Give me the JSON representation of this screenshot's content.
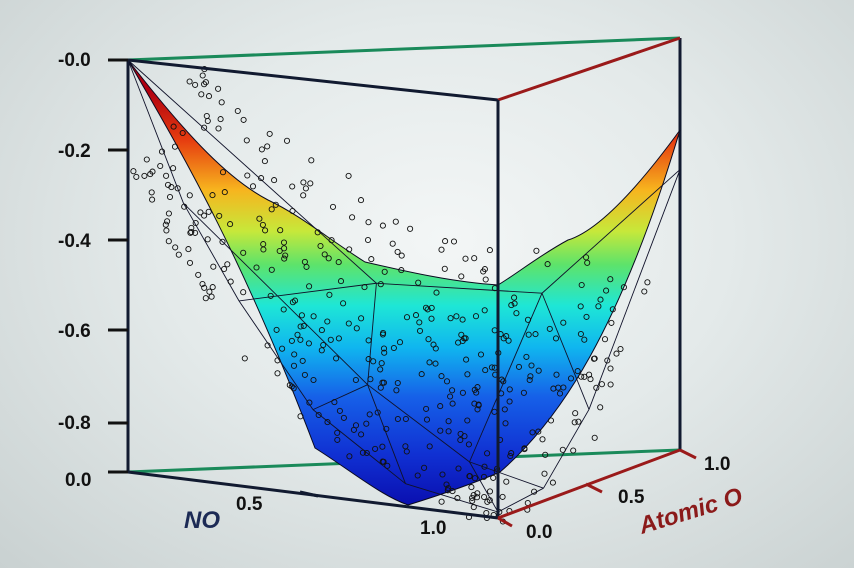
{
  "chart_data": {
    "type": "surface3d",
    "title": "",
    "axes": {
      "x": {
        "label": "NO",
        "ticks": [
          "0.0",
          "0.5",
          "1.0"
        ],
        "range": [
          0,
          1
        ],
        "color": "#1c2a55"
      },
      "y": {
        "label": "Atomic O",
        "ticks": [
          "0.0",
          "0.5",
          "1.0"
        ],
        "range": [
          0,
          1
        ],
        "color": "#8b1a1a"
      },
      "z": {
        "label": "",
        "ticks": [
          "-0.0",
          "-0.2",
          "-0.4",
          "-0.6",
          "-0.8"
        ],
        "range": [
          -0.9,
          0
        ],
        "color": "#111111"
      }
    },
    "surface_points": [
      {
        "x": 0.0,
        "y": 0.0,
        "z": 0.0
      },
      {
        "x": 0.15,
        "y": 0.0,
        "z": -0.3
      },
      {
        "x": 0.3,
        "y": 0.0,
        "z": -0.5
      },
      {
        "x": 0.5,
        "y": 0.0,
        "z": -0.72
      },
      {
        "x": 0.75,
        "y": 0.0,
        "z": -0.86
      },
      {
        "x": 1.0,
        "y": 0.0,
        "z": -0.9
      },
      {
        "x": 1.0,
        "y": 0.25,
        "z": -0.86
      },
      {
        "x": 1.0,
        "y": 0.5,
        "z": -0.7
      },
      {
        "x": 1.0,
        "y": 0.75,
        "z": -0.45
      },
      {
        "x": 1.0,
        "y": 1.0,
        "z": -0.2
      },
      {
        "x": 0.75,
        "y": 0.75,
        "z": -0.48
      },
      {
        "x": 0.45,
        "y": 0.45,
        "z": -0.47
      },
      {
        "x": 0.5,
        "y": 0.3,
        "z": -0.68
      },
      {
        "x": 0.8,
        "y": 0.25,
        "z": -0.82
      }
    ],
    "sample_points_count": 420,
    "colormap": "jet",
    "grid": false
  }
}
